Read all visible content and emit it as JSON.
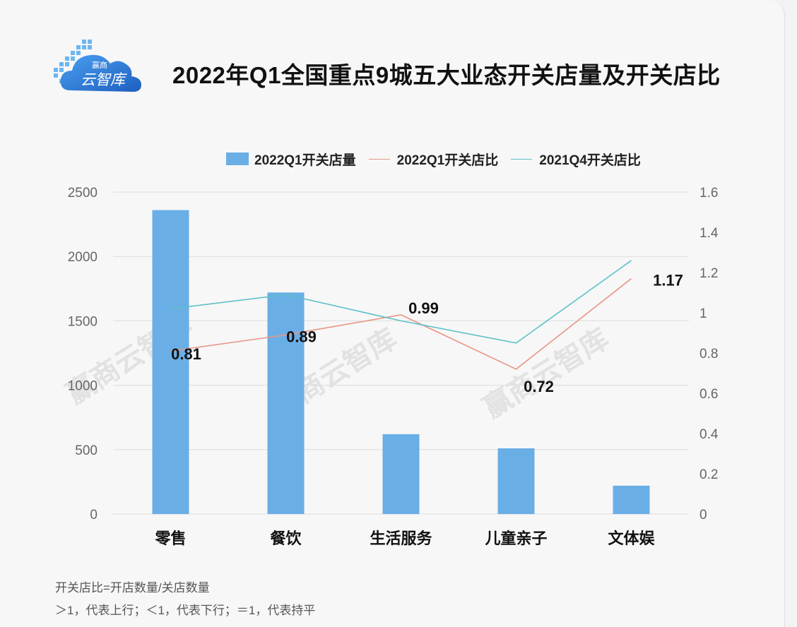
{
  "header": {
    "logo_small_text": "赢商",
    "logo_main_text": "云智库",
    "title": "2022年Q1全国重点9城五大业态开关店量及开关店比"
  },
  "watermark": "赢商云智库",
  "chart_data": {
    "type": "bar+line",
    "title": "2022年Q1全国重点9城五大业态开关店量及开关店比",
    "categories": [
      "零售",
      "餐饮",
      "生活服务",
      "儿童亲子",
      "文体娱"
    ],
    "series": [
      {
        "name": "2022Q1开关店量",
        "kind": "bar",
        "axis": "left",
        "color": "#6aaee6",
        "values": [
          2360,
          1720,
          620,
          510,
          220
        ]
      },
      {
        "name": "2022Q1开关店比",
        "kind": "line",
        "axis": "right",
        "color": "#e89584",
        "values": [
          0.81,
          0.89,
          0.99,
          0.72,
          1.17
        ],
        "labels": [
          "0.81",
          "0.89",
          "0.99",
          "0.72",
          "1.17"
        ]
      },
      {
        "name": "2021Q4开关店比",
        "kind": "line",
        "axis": "right",
        "color": "#5cc1c9",
        "values": [
          1.02,
          1.09,
          0.96,
          0.85,
          1.26
        ]
      }
    ],
    "y_left": {
      "min": 0,
      "max": 2500,
      "ticks": [
        "0",
        "500",
        "1000",
        "1500",
        "2000",
        "2500"
      ]
    },
    "y_right": {
      "min": 0,
      "max": 1.6,
      "ticks": [
        "0",
        "0.2",
        "0.4",
        "0.6",
        "0.8",
        "1",
        "1.2",
        "1.4",
        "1.6"
      ]
    },
    "grid": true,
    "legend_position": "top-right"
  },
  "footnotes": {
    "line1": "开关店比=开店数量/关店数量",
    "line2": "＞1，代表上行；＜1，代表下行；＝1，代表持平"
  }
}
